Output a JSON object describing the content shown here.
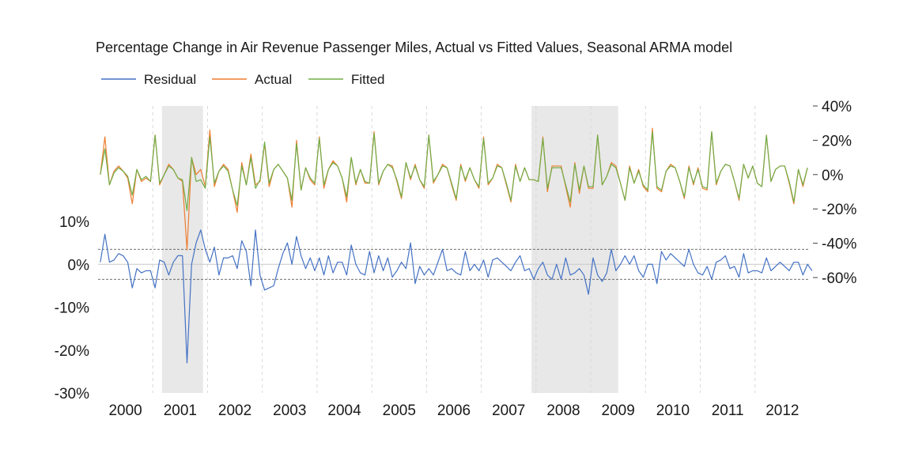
{
  "chart_data": {
    "type": "line",
    "title": "Percentage Change in Air Revenue Passenger Miles, Actual vs Fitted Values, Seasonal ARMA model",
    "legend": {
      "placement": "top-left",
      "entries": [
        "Residual",
        "Actual",
        "Fitted"
      ]
    },
    "colors": {
      "residual": "#4472c4",
      "actual": "#ed7d31",
      "fitted": "#70ad47",
      "recession": "#e8e8e8",
      "zero_line": "#c8c8c8",
      "band_line": "#404040",
      "year_grid": "#d9d9d9"
    },
    "x_axis": {
      "start": "2000-01",
      "end": "2012-12",
      "year_labels": [
        "2000",
        "2001",
        "2002",
        "2003",
        "2004",
        "2005",
        "2006",
        "2007",
        "2008",
        "2009",
        "2010",
        "2011",
        "2012"
      ]
    },
    "y_left": {
      "range": [
        -30,
        10
      ],
      "ticks": [
        10,
        0,
        -10,
        -20,
        -30
      ],
      "tick_labels": [
        "10%",
        "0%",
        "-10%",
        "-20%",
        "-30%"
      ],
      "series": [
        "Residual"
      ]
    },
    "y_right": {
      "range": [
        -60,
        40
      ],
      "ticks": [
        40,
        20,
        0,
        -20,
        -40,
        -60
      ],
      "tick_labels": [
        "40%",
        "20%",
        "0%",
        "-20%",
        "-40%",
        "-60%"
      ],
      "series": [
        "Actual",
        "Fitted"
      ]
    },
    "residual_band": [
      3.5,
      -3.5
    ],
    "recessions": [
      {
        "start": "2001-03",
        "end": "2001-11"
      },
      {
        "start": "2007-12",
        "end": "2009-06"
      }
    ],
    "series": [
      {
        "name": "Residual",
        "axis": "left",
        "values": [
          0.5,
          7,
          0.5,
          1,
          2.5,
          2,
          0.5,
          -5.5,
          -1,
          -2,
          -1.5,
          -1.5,
          -5.5,
          1,
          0.5,
          -2.5,
          0.5,
          2,
          2,
          -23,
          0,
          5,
          8,
          3.5,
          0.5,
          4,
          -2.5,
          1.5,
          1.5,
          2,
          -1,
          5.5,
          3,
          -5,
          8,
          -2.5,
          -6,
          -5.5,
          -5,
          -1,
          2.5,
          5,
          0,
          6.5,
          2,
          -1,
          1.5,
          -1.5,
          1.5,
          -2.5,
          2,
          -2,
          0.5,
          0.5,
          -2.5,
          4.5,
          0,
          -2,
          -2.5,
          3,
          -2,
          2,
          -1.5,
          1.5,
          -3,
          -1.5,
          0.5,
          -1,
          5,
          -4.5,
          -0.5,
          -2.5,
          -1,
          -2.5,
          0.5,
          3.5,
          -1.5,
          -1,
          -2,
          -2.5,
          3,
          -1.5,
          0,
          -1.5,
          1,
          -3,
          1,
          1.5,
          0.5,
          -0.5,
          -1.5,
          0.5,
          2,
          -1.5,
          -1,
          -3.5,
          -1,
          0.5,
          -2.5,
          -3.5,
          0,
          -3.5,
          1.5,
          -2.5,
          -2,
          -1,
          -2.5,
          -7,
          1.5,
          -2.5,
          -4,
          -2,
          3.5,
          -1.5,
          0,
          2,
          0,
          2,
          -1.5,
          -3,
          0,
          0,
          -4.5,
          3,
          1,
          2.5,
          1.5,
          0.5,
          -0.5,
          3.5,
          0,
          -2,
          -2.5,
          -0.5,
          -3.5,
          0.5,
          1,
          2,
          -1,
          -0.5,
          -3,
          2.5,
          -2,
          -1.5,
          -1.5,
          -2,
          1.5,
          -1.5,
          -0.5,
          0.5,
          -0.5,
          -1.5,
          0.5,
          0.5,
          -2.5,
          0,
          -1.5
        ]
      },
      {
        "name": "Actual",
        "axis": "right",
        "values": [
          0,
          22,
          -6,
          2,
          5,
          2,
          -2,
          -17,
          3,
          -4,
          -2,
          -4,
          23,
          -6,
          0,
          6,
          3,
          -2,
          -4,
          -44,
          10,
          0,
          3,
          -7,
          26,
          -7,
          2,
          6,
          3,
          -9,
          -22,
          7,
          -6,
          12,
          -6,
          -4,
          18,
          -7,
          3,
          6,
          2,
          -2,
          -19,
          20,
          -9,
          4,
          -3,
          -6,
          22,
          -8,
          3,
          8,
          5,
          -2,
          -16,
          10,
          -6,
          3,
          -5,
          -5,
          25,
          -6,
          2,
          6,
          5,
          -4,
          -14,
          7,
          -3,
          6,
          -3,
          -8,
          23,
          -5,
          0,
          6,
          4,
          -6,
          -15,
          6,
          -4,
          4,
          -3,
          -8,
          22,
          -6,
          -2,
          6,
          4,
          -6,
          -16,
          6,
          -4,
          4,
          -3,
          -3,
          -4,
          22,
          -10,
          5,
          5,
          5,
          -7,
          -19,
          7,
          -11,
          5,
          -8,
          -8,
          23,
          -6,
          -1,
          7,
          5,
          -5,
          -15,
          5,
          -5,
          3,
          -7,
          -10,
          27,
          -8,
          -10,
          2,
          6,
          4,
          -4,
          -14,
          5,
          -6,
          4,
          -8,
          -9,
          25,
          -6,
          2,
          6,
          5,
          -4,
          -15,
          6,
          -2,
          5,
          -5,
          -7,
          23,
          -4,
          3,
          5,
          5,
          -5,
          -17,
          3,
          -7,
          4
        ]
      },
      {
        "name": "Fitted",
        "axis": "right",
        "values": [
          0,
          15,
          -6,
          1,
          4,
          2,
          -1,
          -12,
          3,
          -3,
          -1,
          -4,
          23,
          -5,
          0,
          5,
          3,
          -2,
          -3,
          -21,
          10,
          -4,
          -3,
          -8,
          22,
          -5,
          2,
          5,
          2,
          -9,
          -18,
          5,
          -6,
          10,
          -8,
          -3,
          19,
          -5,
          3,
          6,
          2,
          -2,
          -15,
          18,
          -9,
          4,
          -2,
          -5,
          21,
          -6,
          3,
          7,
          5,
          -2,
          -13,
          10,
          -5,
          3,
          -4,
          -5,
          24,
          -5,
          2,
          6,
          4,
          -3,
          -13,
          7,
          -2,
          5,
          -3,
          -7,
          23,
          -4,
          0,
          5,
          4,
          -5,
          -14,
          5,
          -3,
          4,
          -3,
          -7,
          21,
          -5,
          -2,
          5,
          4,
          -5,
          -15,
          5,
          -4,
          4,
          -3,
          -3,
          -4,
          21,
          -8,
          4,
          4,
          4,
          -6,
          -16,
          6,
          -9,
          5,
          -7,
          -7,
          23,
          -6,
          -1,
          6,
          4,
          -5,
          -15,
          4,
          -5,
          2,
          -6,
          -9,
          25,
          -7,
          -9,
          2,
          5,
          4,
          -4,
          -13,
          4,
          -5,
          3,
          -7,
          -8,
          25,
          -5,
          2,
          6,
          5,
          -4,
          -14,
          6,
          -2,
          5,
          -5,
          -7,
          23,
          -4,
          3,
          5,
          5,
          -4,
          -16,
          3,
          -6,
          4
        ]
      }
    ]
  }
}
